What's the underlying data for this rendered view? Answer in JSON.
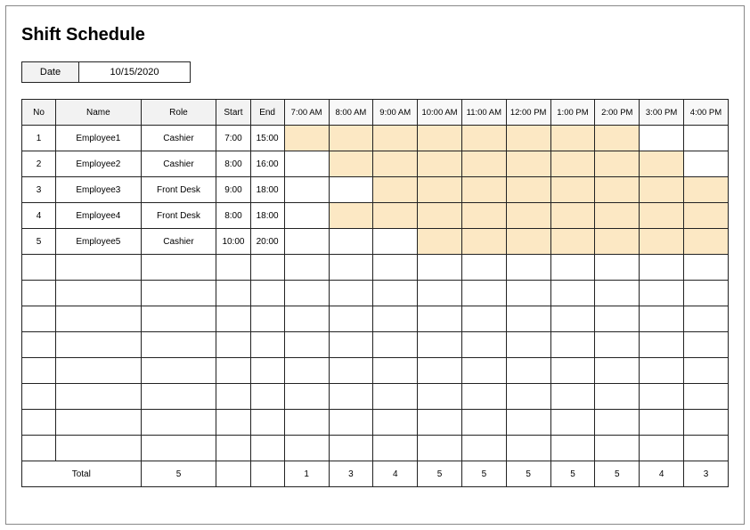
{
  "title": "Shift Schedule",
  "date": {
    "label": "Date",
    "value": "10/15/2020"
  },
  "headers": {
    "no": "No",
    "name": "Name",
    "role": "Role",
    "start": "Start",
    "end": "End"
  },
  "hours": [
    "7:00 AM",
    "8:00 AM",
    "9:00 AM",
    "10:00 AM",
    "11:00 AM",
    "12:00 PM",
    "1:00 PM",
    "2:00 PM",
    "3:00 PM",
    "4:00 PM"
  ],
  "rows": [
    {
      "no": "1",
      "name": "Employee1",
      "role": "Cashier",
      "start": "7:00",
      "end": "15:00",
      "shade": [
        true,
        true,
        true,
        true,
        true,
        true,
        true,
        true,
        false,
        false
      ]
    },
    {
      "no": "2",
      "name": "Employee2",
      "role": "Cashier",
      "start": "8:00",
      "end": "16:00",
      "shade": [
        false,
        true,
        true,
        true,
        true,
        true,
        true,
        true,
        true,
        false
      ]
    },
    {
      "no": "3",
      "name": "Employee3",
      "role": "Front Desk",
      "start": "9:00",
      "end": "18:00",
      "shade": [
        false,
        false,
        true,
        true,
        true,
        true,
        true,
        true,
        true,
        true
      ]
    },
    {
      "no": "4",
      "name": "Employee4",
      "role": "Front Desk",
      "start": "8:00",
      "end": "18:00",
      "shade": [
        false,
        true,
        true,
        true,
        true,
        true,
        true,
        true,
        true,
        true
      ]
    },
    {
      "no": "5",
      "name": "Employee5",
      "role": "Cashier",
      "start": "10:00",
      "end": "20:00",
      "shade": [
        false,
        false,
        false,
        true,
        true,
        true,
        true,
        true,
        true,
        true
      ]
    }
  ],
  "empty_rows": 8,
  "total": {
    "label": "Total",
    "role_count": "5",
    "hours": [
      "1",
      "3",
      "4",
      "5",
      "5",
      "5",
      "5",
      "5",
      "4",
      "3"
    ]
  },
  "colors": {
    "shade": "#fce8c4",
    "header_bg": "#f2f2f2",
    "border": "#222222"
  }
}
